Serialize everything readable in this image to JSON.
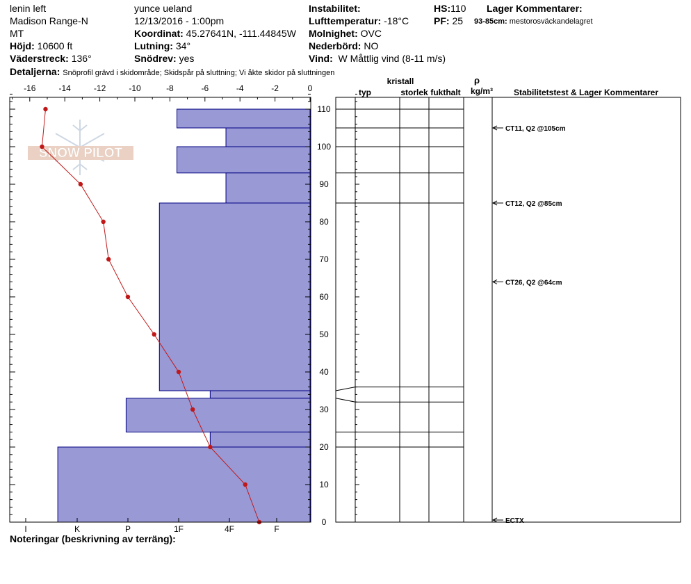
{
  "header": {
    "location": "lenin left",
    "range": "Madison Range-N",
    "state": "MT",
    "elevation_label": "Höjd:",
    "elevation": "10600 ft",
    "aspect_label": "Väderstreck:",
    "aspect": "136°",
    "observer": "yunce ueland",
    "datetime": "12/13/2016 - 1:00pm",
    "coord_label": "Koordinat:",
    "coord": "45.27641N, -111.44845W",
    "slope_label": "Lutning:",
    "slope": "34°",
    "wind_loading_label": "Snödrev:",
    "wind_loading": "yes",
    "instability_label": "Instabilitet:",
    "air_temp_label": "Lufttemperatur:",
    "air_temp": "-18°C",
    "sky_label": "Molnighet:",
    "sky": "OVC",
    "precip_label": "Nederbörd:",
    "precip": "NO",
    "wind_label": "Vind:",
    "wind": "W Måttlig vind (8-11 m/s)",
    "hs_label": "HS:",
    "hs": "110",
    "pf_label": "PF:",
    "pf": "25",
    "layer_comments_label": "Lager Kommentarer:",
    "layer_comment": "93-85cm:",
    "layer_comment_text": "mestorosväckandelagret",
    "details_label": "Detaljerna:",
    "details": "Snöprofil grävd i skidområde;  Skidspår på sluttning;  Vi åkte skidor på sluttningen"
  },
  "columns": {
    "crystal": "kristall",
    "type": "typ",
    "size": "storlek",
    "moisture": "fukthalt",
    "rho": "ρ",
    "density_unit": "kg/m³",
    "stability": "Stabilitetstest & Lager Kommentarer"
  },
  "footer": {
    "notes_label": "Noteringar (beskrivning av terräng):"
  },
  "watermark": "SNOW PILOT",
  "colors": {
    "hardness_fill": "#9999d6",
    "hardness_stroke": "#000080",
    "temp_line": "#c01818"
  },
  "chart_data": {
    "type": "snow_profile",
    "depth_axis": {
      "range": [
        0,
        115
      ],
      "ticks": [
        0,
        10,
        20,
        30,
        40,
        50,
        60,
        70,
        80,
        90,
        100,
        110
      ]
    },
    "temp_axis": {
      "range": [
        -17,
        0
      ],
      "ticks": [
        -16,
        -14,
        -12,
        -10,
        -8,
        -6,
        -4,
        -2,
        0
      ]
    },
    "hardness_axis": {
      "labels": [
        "I",
        "K",
        "P",
        "1F",
        "4F",
        "F"
      ]
    },
    "temperature_profile": [
      {
        "depth": 110,
        "temp": -15.1
      },
      {
        "depth": 100,
        "temp": -15.3
      },
      {
        "depth": 90,
        "temp": -13.1
      },
      {
        "depth": 80,
        "temp": -11.8
      },
      {
        "depth": 70,
        "temp": -11.5
      },
      {
        "depth": 60,
        "temp": -10.4
      },
      {
        "depth": 50,
        "temp": -8.9
      },
      {
        "depth": 40,
        "temp": -7.5
      },
      {
        "depth": 30,
        "temp": -6.7
      },
      {
        "depth": 20,
        "temp": -5.7
      },
      {
        "depth": 10,
        "temp": -3.7
      },
      {
        "depth": 0,
        "temp": -2.9
      }
    ],
    "hardness_layers": [
      {
        "top": 110,
        "bottom": 105,
        "temp_extent": -7.6
      },
      {
        "top": 105,
        "bottom": 100,
        "temp_extent": -4.8
      },
      {
        "top": 100,
        "bottom": 93,
        "temp_extent": -7.6
      },
      {
        "top": 93,
        "bottom": 85,
        "temp_extent": -4.8
      },
      {
        "top": 85,
        "bottom": 35,
        "temp_extent": -8.6
      },
      {
        "top": 35,
        "bottom": 33,
        "temp_extent": -5.7
      },
      {
        "top": 33,
        "bottom": 24,
        "temp_extent": -10.5
      },
      {
        "top": 24,
        "bottom": 20,
        "temp_extent": -5.7
      },
      {
        "top": 20,
        "bottom": 0,
        "temp_extent": -14.4
      }
    ],
    "layer_boundaries": [
      110,
      105,
      100,
      93,
      85,
      36,
      32,
      24,
      20
    ],
    "stability_tests": [
      {
        "depth": 105,
        "label": "CT11, Q2 @105cm"
      },
      {
        "depth": 85,
        "label": "CT12, Q2 @85cm"
      },
      {
        "depth": 64,
        "label": "CT26, Q2 @64cm"
      },
      {
        "depth": 0,
        "label": "ECTX"
      }
    ]
  }
}
